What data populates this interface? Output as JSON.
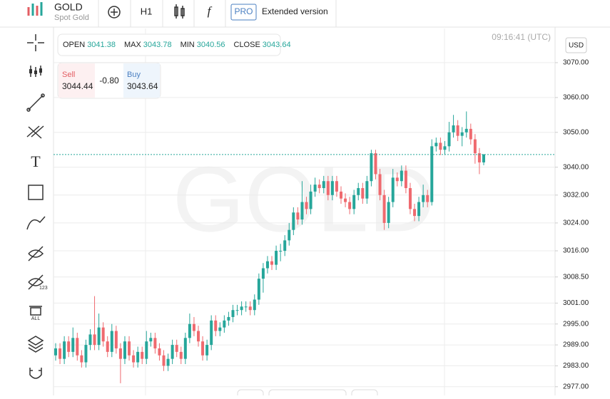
{
  "header": {
    "symbol": "GOLD",
    "name": "Spot Gold",
    "interval": "H1",
    "pro": "PRO",
    "extended": "Extended version"
  },
  "toolbar": {
    "badges": [
      "123",
      "ALL"
    ]
  },
  "ohlc_panel": [
    {
      "label": "OPEN",
      "value": "3041.38"
    },
    {
      "label": "MAX",
      "value": "3043.78"
    },
    {
      "label": "MIN",
      "value": "3040.56"
    },
    {
      "label": "CLOSE",
      "value": "3043.64"
    }
  ],
  "trade_panel": {
    "sell_label": "Sell",
    "sell_price": "3044.44",
    "spread": "-0.80",
    "buy_label": "Buy",
    "buy_price": "3043.64"
  },
  "chart_data": {
    "type": "candlestick",
    "watermark": "GOLD",
    "time": "09:16:41 (UTC)",
    "currency": "USD",
    "up_color": "#26a69a",
    "down_color": "#ef6a6f",
    "grid": true,
    "ylim": [
      2974.5,
      3079.8
    ],
    "yticks": [
      {
        "value": 3070,
        "label": "3070.00"
      },
      {
        "value": 3060,
        "label": "3060.00"
      },
      {
        "value": 3050,
        "label": "3050.00"
      },
      {
        "value": 3040,
        "label": "3040.00"
      },
      {
        "value": 3032,
        "label": "3032.00"
      },
      {
        "value": 3024,
        "label": "3024.00"
      },
      {
        "value": 3016,
        "label": "3016.00"
      },
      {
        "value": 3008.5,
        "label": "3008.50"
      },
      {
        "value": 3001,
        "label": "3001.00"
      },
      {
        "value": 2995,
        "label": "2995.00"
      },
      {
        "value": 2989,
        "label": "2989.00"
      },
      {
        "value": 2983,
        "label": "2983.00"
      },
      {
        "value": 2977,
        "label": "2977.00"
      }
    ],
    "open": [
      2986,
      2988,
      2985,
      2990,
      2987,
      2991,
      2986,
      2984,
      2989,
      2992,
      2989,
      2994,
      2990,
      2987,
      2993,
      2988,
      2985,
      2990,
      2986,
      2984,
      2987,
      2985,
      2990,
      2991,
      2988,
      2986,
      2983,
      2985,
      2989,
      2987,
      2985,
      2991,
      2995,
      2993,
      2990,
      2986,
      2989,
      2996,
      2993,
      2994,
      2996,
      2997,
      2999,
      2999,
      3000,
      3000,
      2999,
      3002,
      3008,
      3011,
      3013,
      3012,
      3016,
      3016,
      3019,
      3022,
      3027,
      3025,
      3030,
      3028,
      3033,
      3035,
      3034,
      3036,
      3032,
      3036,
      3033,
      3031,
      3030,
      3028,
      3032,
      3034,
      3031,
      3036,
      3044,
      3038,
      3032,
      3024,
      3030,
      3037,
      3036,
      3039,
      3034,
      3028,
      3026,
      3030,
      3032,
      3030,
      3046,
      3047,
      3045,
      3046,
      3050,
      3052,
      3049,
      3050,
      3051,
      3048,
      3044,
      3041.38
    ],
    "high": [
      2989.5,
      2989.5,
      2991.5,
      2991.5,
      2994,
      2992.5,
      2987.5,
      2990.5,
      2993.5,
      3003,
      2998,
      2995.5,
      2991.5,
      2995,
      2994.5,
      2989.5,
      2991.5,
      2991.5,
      2987.5,
      2988.5,
      2988.5,
      2993,
      2992.5,
      2992.5,
      2989.5,
      2987.5,
      2986.5,
      2990.5,
      2990.5,
      2988.5,
      2992.5,
      2998,
      2997,
      2994.5,
      2991.5,
      2990.5,
      2997.5,
      2997.5,
      2995.5,
      2997.5,
      2998.5,
      3000.5,
      3000.5,
      3001.5,
      3001.5,
      3001.5,
      3003.5,
      3009.5,
      3012.5,
      3014.5,
      3014.5,
      3017.5,
      3018,
      3020.5,
      3024,
      3028.5,
      3028.5,
      3036,
      3031.5,
      3035,
      3037,
      3036.5,
      3037.5,
      3037.5,
      3037.5,
      3037.5,
      3034.5,
      3032.5,
      3031.5,
      3033.5,
      3035.5,
      3035.5,
      3037.5,
      3045,
      3045,
      3039.5,
      3033.5,
      3031.5,
      3039.5,
      3038.5,
      3040.5,
      3040.5,
      3035.5,
      3029.5,
      3031.5,
      3035,
      3033.5,
      3048,
      3048.5,
      3048.5,
      3047.5,
      3053,
      3055,
      3053.5,
      3051.5,
      3056,
      3052.5,
      3049.5,
      3045.5,
      3043.78
    ],
    "low": [
      2984.5,
      2983.5,
      2983.5,
      2985.5,
      2985.5,
      2984.5,
      2982.5,
      2982.5,
      2987.5,
      2987.5,
      2987.5,
      2988.5,
      2985.5,
      2985.5,
      2986.5,
      2978,
      2983.5,
      2984.5,
      2982.5,
      2982.5,
      2983.5,
      2983.5,
      2988.5,
      2986.5,
      2984.5,
      2981.5,
      2981.5,
      2983.5,
      2985.5,
      2983.5,
      2983.5,
      2989.5,
      2991.5,
      2988.5,
      2984.5,
      2984.5,
      2987.5,
      2991.5,
      2991.5,
      2992.5,
      2994.5,
      2995.5,
      2997.5,
      2997.5,
      2998.5,
      2997.5,
      2997.5,
      3000.5,
      3004,
      3009.5,
      3010.5,
      3010.5,
      3013,
      3014.5,
      3017.5,
      3020.5,
      3023.5,
      3023.5,
      3026.5,
      3026.5,
      3031.5,
      3032.5,
      3032.5,
      3030.5,
      3030.5,
      3031.5,
      3029.5,
      3028.5,
      3026.5,
      3026.5,
      3030.5,
      3029.5,
      3029.5,
      3034.5,
      3036.5,
      3030.5,
      3022,
      3022.5,
      3028.5,
      3034.5,
      3034.5,
      3032.5,
      3026.5,
      3024.5,
      3024.5,
      3028.5,
      3028.5,
      3029,
      3044.5,
      3043.5,
      3043.5,
      3044.5,
      3048.5,
      3047.5,
      3046,
      3048.5,
      3046.5,
      3041,
      3038,
      3040.56
    ],
    "close": [
      2988,
      2985,
      2990,
      2987,
      2991,
      2986,
      2984,
      2989,
      2992,
      2989,
      2994,
      2990,
      2987,
      2993,
      2988,
      2985,
      2990,
      2986,
      2984,
      2987,
      2985,
      2990,
      2991,
      2988,
      2986,
      2983,
      2985,
      2989,
      2987,
      2985,
      2991,
      2995,
      2993,
      2990,
      2986,
      2989,
      2996,
      2993,
      2994,
      2996,
      2997,
      2999,
      2999,
      3000,
      3000,
      2999,
      3002,
      3008,
      3011,
      3013,
      3012,
      3016,
      3016,
      3019,
      3022,
      3027,
      3025,
      3030,
      3028,
      3033,
      3035,
      3034,
      3036,
      3032,
      3036,
      3033,
      3031,
      3030,
      3028,
      3032,
      3034,
      3031,
      3036,
      3044,
      3038,
      3032,
      3024,
      3030,
      3037,
      3036,
      3039,
      3034,
      3028,
      3026,
      3030,
      3032,
      3030,
      3046,
      3047,
      3045,
      3046,
      3050,
      3052,
      3049,
      3050,
      3051,
      3048,
      3044,
      3041.38,
      3043.64
    ]
  }
}
